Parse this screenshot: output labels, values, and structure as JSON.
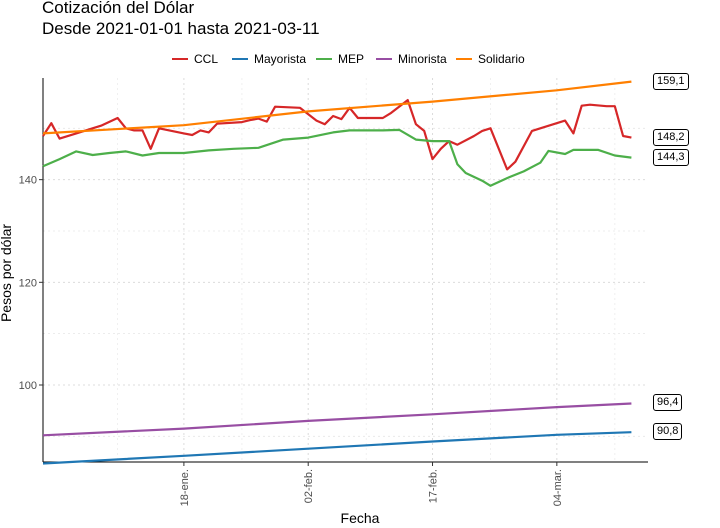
{
  "chart_data": {
    "type": "line",
    "title": "Cotización del Dólar",
    "subtitle": "Desde 2021-01-01 hasta 2021-03-11",
    "xlabel": "Fecha",
    "ylabel": "Pesos por dólar",
    "xlim": [
      "2021-01-01",
      "2021-03-11"
    ],
    "ylim": [
      85,
      159.8
    ],
    "yticks": [
      100,
      120,
      140
    ],
    "xticks": [
      {
        "date": "2021-01-18",
        "label": "18-ene."
      },
      {
        "date": "2021-02-02",
        "label": "02-feb."
      },
      {
        "date": "2021-02-17",
        "label": "17-feb."
      },
      {
        "date": "2021-03-04",
        "label": "04-mar."
      }
    ],
    "grid": true,
    "legend_position": "top",
    "series": [
      {
        "name": "CCL",
        "color": "#d62728",
        "end_label": "148,2",
        "points": [
          [
            "2021-01-01",
            148.5
          ],
          [
            "2021-01-02",
            151
          ],
          [
            "2021-01-03",
            148
          ],
          [
            "2021-01-05",
            149
          ],
          [
            "2021-01-08",
            150.5
          ],
          [
            "2021-01-10",
            152
          ],
          [
            "2021-01-11",
            150
          ],
          [
            "2021-01-12",
            149.6
          ],
          [
            "2021-01-13",
            149.6
          ],
          [
            "2021-01-14",
            146
          ],
          [
            "2021-01-15",
            150
          ],
          [
            "2021-01-18",
            149
          ],
          [
            "2021-01-19",
            148.7
          ],
          [
            "2021-01-20",
            149.6
          ],
          [
            "2021-01-21",
            149.2
          ],
          [
            "2021-01-22",
            150.9
          ],
          [
            "2021-01-25",
            151.2
          ],
          [
            "2021-01-26",
            151.6
          ],
          [
            "2021-01-27",
            151.9
          ],
          [
            "2021-01-28",
            151.3
          ],
          [
            "2021-01-29",
            154.2
          ],
          [
            "2021-02-01",
            154
          ],
          [
            "2021-02-03",
            151.5
          ],
          [
            "2021-02-04",
            150.8
          ],
          [
            "2021-02-05",
            152.4
          ],
          [
            "2021-02-06",
            151.8
          ],
          [
            "2021-02-07",
            154
          ],
          [
            "2021-02-08",
            152
          ],
          [
            "2021-02-11",
            152
          ],
          [
            "2021-02-12",
            153
          ],
          [
            "2021-02-14",
            155.5
          ],
          [
            "2021-02-15",
            150.8
          ],
          [
            "2021-02-16",
            149.5
          ],
          [
            "2021-02-17",
            144
          ],
          [
            "2021-02-18",
            146
          ],
          [
            "2021-02-19",
            147.5
          ],
          [
            "2021-02-20",
            146.8
          ],
          [
            "2021-02-22",
            148.5
          ],
          [
            "2021-02-23",
            149.5
          ],
          [
            "2021-02-24",
            150
          ],
          [
            "2021-02-26",
            142
          ],
          [
            "2021-02-27",
            143.5
          ],
          [
            "2021-03-01",
            149.5
          ],
          [
            "2021-03-05",
            151.5
          ],
          [
            "2021-03-06",
            149
          ],
          [
            "2021-03-07",
            154.4
          ],
          [
            "2021-03-08",
            154.6
          ],
          [
            "2021-03-10",
            154.3
          ],
          [
            "2021-03-11",
            154.3
          ],
          [
            "2021-03-12",
            148.5
          ],
          [
            "2021-03-13",
            148.2
          ]
        ]
      },
      {
        "name": "Mayorista",
        "color": "#1f77b4",
        "end_label": "90,8",
        "points": [
          [
            "2021-01-01",
            84.7
          ],
          [
            "2021-01-18",
            86.2
          ],
          [
            "2021-02-02",
            87.6
          ],
          [
            "2021-02-17",
            89
          ],
          [
            "2021-03-04",
            90.3
          ],
          [
            "2021-03-13",
            90.8
          ]
        ]
      },
      {
        "name": "MEP",
        "color": "#4daf4a",
        "end_label": "144,3",
        "points": [
          [
            "2021-01-01",
            142.6
          ],
          [
            "2021-01-03",
            144
          ],
          [
            "2021-01-05",
            145.5
          ],
          [
            "2021-01-07",
            144.8
          ],
          [
            "2021-01-09",
            145.2
          ],
          [
            "2021-01-11",
            145.5
          ],
          [
            "2021-01-13",
            144.7
          ],
          [
            "2021-01-15",
            145.2
          ],
          [
            "2021-01-18",
            145.2
          ],
          [
            "2021-01-21",
            145.7
          ],
          [
            "2021-01-24",
            146
          ],
          [
            "2021-01-27",
            146.2
          ],
          [
            "2021-01-30",
            147.8
          ],
          [
            "2021-02-02",
            148.2
          ],
          [
            "2021-02-05",
            149.2
          ],
          [
            "2021-02-07",
            149.6
          ],
          [
            "2021-02-11",
            149.6
          ],
          [
            "2021-02-13",
            149.7
          ],
          [
            "2021-02-15",
            147.8
          ],
          [
            "2021-02-17",
            147.5
          ],
          [
            "2021-02-19",
            147.5
          ],
          [
            "2021-02-20",
            143
          ],
          [
            "2021-02-21",
            141.3
          ],
          [
            "2021-02-23",
            139.8
          ],
          [
            "2021-02-24",
            138.8
          ],
          [
            "2021-02-26",
            140.3
          ],
          [
            "2021-02-28",
            141.6
          ],
          [
            "2021-03-02",
            143.3
          ],
          [
            "2021-03-03",
            145.6
          ],
          [
            "2021-03-05",
            145
          ],
          [
            "2021-03-06",
            145.8
          ],
          [
            "2021-03-09",
            145.8
          ],
          [
            "2021-03-11",
            144.7
          ],
          [
            "2021-03-13",
            144.3
          ]
        ]
      },
      {
        "name": "Minorista",
        "color": "#984ea3",
        "end_label": "96,4",
        "points": [
          [
            "2021-01-01",
            90.2
          ],
          [
            "2021-01-18",
            91.5
          ],
          [
            "2021-02-02",
            93
          ],
          [
            "2021-02-17",
            94.3
          ],
          [
            "2021-03-04",
            95.7
          ],
          [
            "2021-03-13",
            96.4
          ]
        ]
      },
      {
        "name": "Solidario",
        "color": "#ff7f00",
        "end_label": "159,1",
        "points": [
          [
            "2021-01-01",
            149
          ],
          [
            "2021-01-18",
            150.6
          ],
          [
            "2021-02-02",
            153.3
          ],
          [
            "2021-02-17",
            155.2
          ],
          [
            "2021-03-04",
            157.4
          ],
          [
            "2021-03-13",
            159.1
          ]
        ]
      }
    ]
  }
}
